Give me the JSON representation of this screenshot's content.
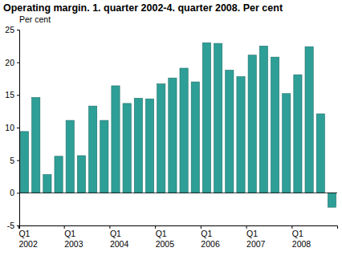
{
  "chart_data": {
    "type": "bar",
    "title": "Operating margin. 1. quarter 2002-4. quarter 2008. Per cent",
    "y_label": "Per cent",
    "categories": [
      "Q1\n2002",
      null,
      null,
      null,
      "Q1\n2003",
      null,
      null,
      null,
      "Q1\n2004",
      null,
      null,
      null,
      "Q1\n2005",
      null,
      null,
      null,
      "Q1\n2006",
      null,
      null,
      null,
      "Q1\n2007",
      null,
      null,
      null,
      "Q1\n2008",
      null,
      null,
      null
    ],
    "values": [
      9.4,
      14.6,
      2.8,
      5.6,
      11.1,
      5.7,
      13.3,
      11.1,
      16.4,
      13.7,
      14.5,
      14.4,
      16.7,
      17.6,
      19.1,
      17.0,
      23.0,
      22.9,
      18.8,
      17.8,
      21.1,
      22.5,
      20.8,
      15.2,
      18.1,
      22.4,
      12.1,
      -2.2
    ],
    "color": "#2e9f97",
    "ylim": [
      -5,
      25
    ],
    "yticks": [
      -5,
      0,
      5,
      10,
      15,
      20,
      25
    ],
    "grid": false
  }
}
